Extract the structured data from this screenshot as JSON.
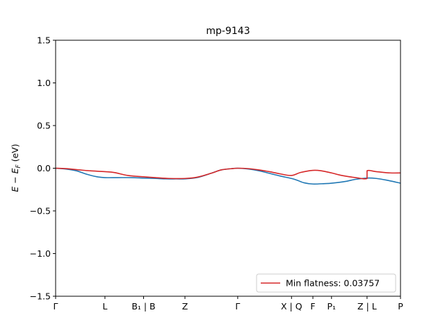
{
  "chart_data": {
    "type": "line",
    "title": "mp-9143",
    "xlabel": "",
    "ylabel": "E − E_F (eV)",
    "ylim": [
      -1.5,
      1.5
    ],
    "xlim": [
      0,
      10
    ],
    "yticks": [
      -1.5,
      -1.0,
      -0.5,
      0.0,
      0.5,
      1.0,
      1.5
    ],
    "ytick_labels": [
      "−1.5",
      "−1.0",
      "−0.5",
      "0.0",
      "0.5",
      "1.0",
      "1.5"
    ],
    "xticks": [
      {
        "x": 0.0,
        "label": "Γ"
      },
      {
        "x": 1.43,
        "label": "L"
      },
      {
        "x": 2.55,
        "label": "B₁ | B"
      },
      {
        "x": 3.75,
        "label": "Z"
      },
      {
        "x": 5.28,
        "label": "Γ"
      },
      {
        "x": 6.84,
        "label": "X | Q"
      },
      {
        "x": 7.46,
        "label": "F"
      },
      {
        "x": 8.0,
        "label": "P₁"
      },
      {
        "x": 9.03,
        "label": "Z | L"
      },
      {
        "x": 10.0,
        "label": "P"
      }
    ],
    "grid": false,
    "legend": {
      "position": "lower-right",
      "entries": [
        {
          "label": "Min flatness: 0.03757",
          "color": "#d62728"
        }
      ]
    },
    "series": [
      {
        "color": "#1f77b4",
        "points": [
          [
            0,
            0
          ],
          [
            0.3,
            -0.01
          ],
          [
            0.6,
            -0.03
          ],
          [
            0.9,
            -0.07
          ],
          [
            1.2,
            -0.1
          ],
          [
            1.43,
            -0.11
          ],
          [
            1.8,
            -0.11
          ],
          [
            2.2,
            -0.11
          ],
          [
            2.55,
            -0.115
          ],
          [
            2.9,
            -0.12
          ],
          [
            3.2,
            -0.125
          ],
          [
            3.5,
            -0.125
          ],
          [
            3.75,
            -0.125
          ],
          [
            4.1,
            -0.11
          ],
          [
            4.5,
            -0.06
          ],
          [
            4.8,
            -0.02
          ],
          [
            5.1,
            -0.005
          ],
          [
            5.28,
            0
          ],
          [
            5.6,
            -0.01
          ],
          [
            5.9,
            -0.03
          ],
          [
            6.2,
            -0.06
          ],
          [
            6.5,
            -0.09
          ],
          [
            6.84,
            -0.12
          ],
          [
            7.0,
            -0.14
          ],
          [
            7.2,
            -0.17
          ],
          [
            7.46,
            -0.185
          ],
          [
            7.8,
            -0.18
          ],
          [
            8.0,
            -0.175
          ],
          [
            8.4,
            -0.155
          ],
          [
            8.7,
            -0.13
          ],
          [
            9.03,
            -0.115
          ],
          [
            9.3,
            -0.12
          ],
          [
            9.6,
            -0.14
          ],
          [
            10.0,
            -0.175
          ]
        ]
      },
      {
        "color": "#d62728",
        "points": [
          [
            0,
            0
          ],
          [
            0.3,
            -0.005
          ],
          [
            0.7,
            -0.02
          ],
          [
            1.0,
            -0.03
          ],
          [
            1.43,
            -0.04
          ],
          [
            1.7,
            -0.05
          ],
          [
            2.1,
            -0.085
          ],
          [
            2.55,
            -0.1
          ],
          [
            2.9,
            -0.11
          ],
          [
            3.3,
            -0.12
          ],
          [
            3.75,
            -0.12
          ],
          [
            4.1,
            -0.105
          ],
          [
            4.5,
            -0.06
          ],
          [
            4.8,
            -0.02
          ],
          [
            5.1,
            -0.005
          ],
          [
            5.28,
            0
          ],
          [
            5.6,
            -0.005
          ],
          [
            5.9,
            -0.02
          ],
          [
            6.2,
            -0.04
          ],
          [
            6.5,
            -0.065
          ],
          [
            6.84,
            -0.085
          ],
          [
            7.1,
            -0.05
          ],
          [
            7.46,
            -0.025
          ],
          [
            7.7,
            -0.03
          ],
          [
            8.0,
            -0.055
          ],
          [
            8.3,
            -0.085
          ],
          [
            8.7,
            -0.11
          ],
          [
            9.03,
            -0.12
          ],
          [
            9.03,
            -0.03
          ],
          [
            9.3,
            -0.04
          ],
          [
            9.7,
            -0.055
          ],
          [
            10.0,
            -0.055
          ]
        ]
      }
    ]
  }
}
